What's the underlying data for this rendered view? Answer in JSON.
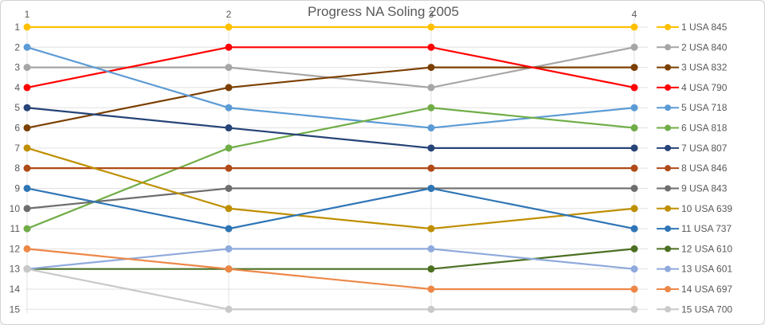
{
  "title": "Progress NA Soling 2005",
  "chart_data": {
    "type": "line",
    "subtype": "bump-rank-progress",
    "title": "Progress NA Soling 2005",
    "x": [
      "1",
      "2",
      "3",
      "4"
    ],
    "x_axis_position": "top",
    "y_ticks": [
      "1",
      "2",
      "3",
      "4",
      "5",
      "6",
      "7",
      "8",
      "9",
      "10",
      "11",
      "12",
      "13",
      "14",
      "15"
    ],
    "y_axis_inverted": true,
    "ylim": [
      1,
      15
    ],
    "grid": true,
    "legend_position": "right",
    "text_color": "#595959",
    "grid_color": "#e0e0e0",
    "series": [
      {
        "name": "1 USA 845",
        "color": "#FFC000",
        "values": [
          1,
          1,
          1,
          1
        ]
      },
      {
        "name": "2 USA 840",
        "color": "#A6A6A6",
        "values": [
          3,
          3,
          4,
          2
        ]
      },
      {
        "name": "3 USA 832",
        "color": "#7B3F00",
        "values": [
          6,
          4,
          3,
          3
        ]
      },
      {
        "name": "4 USA 790",
        "color": "#FF0000",
        "values": [
          4,
          2,
          2,
          4
        ]
      },
      {
        "name": "5 USA 718",
        "color": "#5B9BD5",
        "values": [
          2,
          5,
          6,
          5
        ]
      },
      {
        "name": "6 USA 818",
        "color": "#70AD47",
        "values": [
          11,
          7,
          5,
          6
        ]
      },
      {
        "name": "7 USA 807",
        "color": "#264478",
        "values": [
          5,
          6,
          7,
          7
        ]
      },
      {
        "name": "8 USA 846",
        "color": "#B04A17",
        "values": [
          8,
          8,
          8,
          8
        ]
      },
      {
        "name": "9 USA 843",
        "color": "#6E6E6E",
        "values": [
          10,
          9,
          9,
          9
        ]
      },
      {
        "name": "10 USA 639",
        "color": "#BF8F00",
        "values": [
          7,
          10,
          11,
          10
        ]
      },
      {
        "name": "11 USA 737",
        "color": "#2E75B6",
        "values": [
          9,
          11,
          9,
          11
        ]
      },
      {
        "name": "12 USA 610",
        "color": "#4C7023",
        "values": [
          13,
          13,
          13,
          12
        ]
      },
      {
        "name": "13 USA 601",
        "color": "#8FAADC",
        "values": [
          13,
          12,
          12,
          13
        ]
      },
      {
        "name": "14 USA 697",
        "color": "#ED8747",
        "values": [
          12,
          13,
          14,
          14
        ]
      },
      {
        "name": "15 USA 700",
        "color": "#C9C9C9",
        "values": [
          13,
          15,
          15,
          15
        ]
      }
    ]
  }
}
